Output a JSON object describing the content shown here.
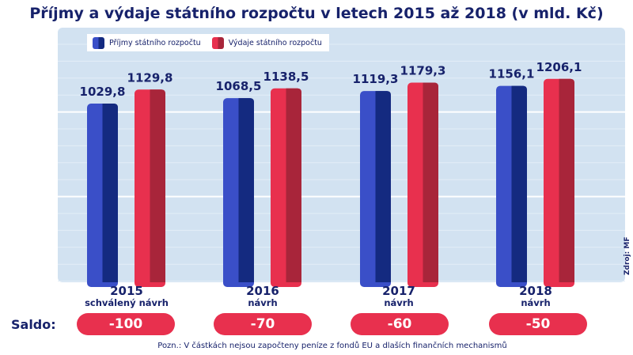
{
  "title": "Příjmy a výdaje státního rozpočtu v letech 2015 až 2018 (v mld. Kč)",
  "chart_data": {
    "type": "bar",
    "categories": [
      "2015",
      "2016",
      "2017",
      "2018"
    ],
    "category_sublabels": [
      "schválený návrh",
      "návrh",
      "návrh",
      "návrh"
    ],
    "series": [
      {
        "name": "Příjmy státního rozpočtu",
        "values": [
          1029.8,
          1068.5,
          1119.3,
          1156.1
        ],
        "labels": [
          "1029,8",
          "1068,5",
          "1119,3",
          "1156,1"
        ],
        "color": "#3a4fc8",
        "color_dark": "#142a80"
      },
      {
        "name": "Výdaje státního rozpočtu",
        "values": [
          1129.8,
          1138.5,
          1179.3,
          1206.1
        ],
        "labels": [
          "1129,8",
          "1138,5",
          "1179,3",
          "1206,1"
        ],
        "color": "#e8304e",
        "color_dark": "#a8253a"
      }
    ],
    "legend": "top-left",
    "grid": true,
    "title": "Příjmy a výdaje státního rozpočtu v letech 2015 až 2018 (v mld. Kč)"
  },
  "saldo": {
    "label": "Saldo:",
    "values": [
      "-100",
      "-70",
      "-60",
      "-50"
    ]
  },
  "source": "Zdroj: MF",
  "note": "Pozn.: V částkách nejsou započteny peníze z fondů EU a dlaších finančních mechanismů"
}
